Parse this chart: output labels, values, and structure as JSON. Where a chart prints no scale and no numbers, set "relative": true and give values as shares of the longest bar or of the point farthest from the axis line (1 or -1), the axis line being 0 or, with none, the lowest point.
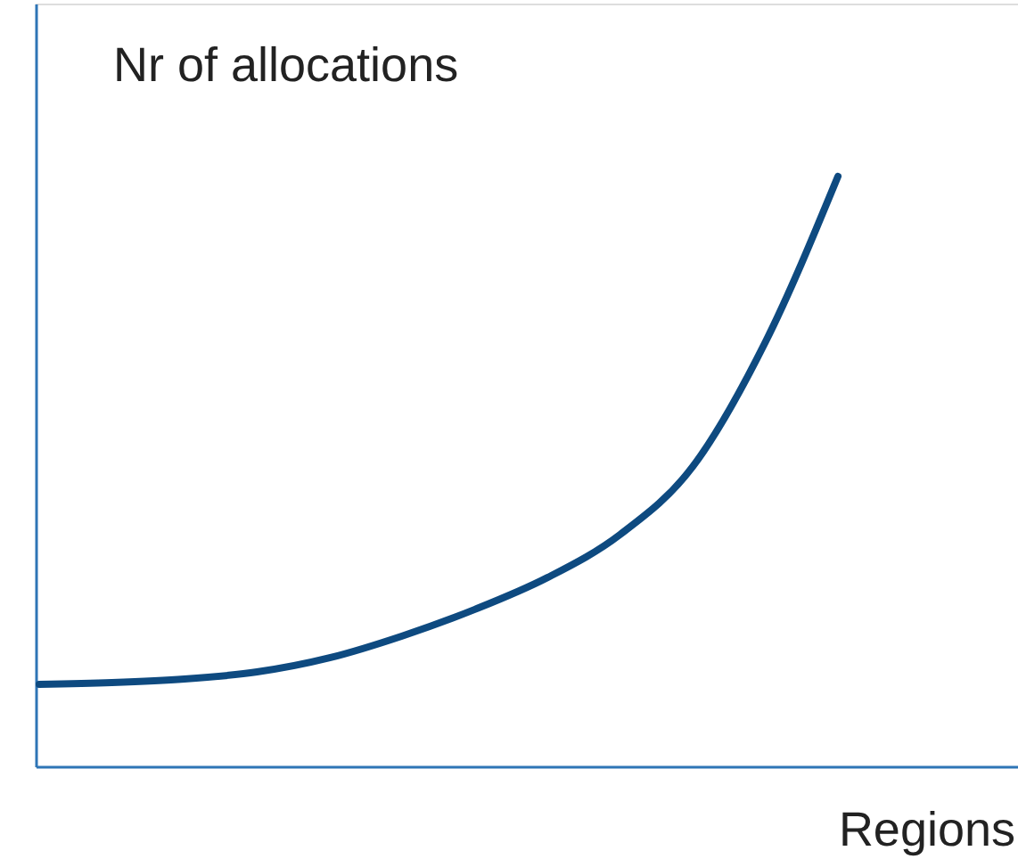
{
  "chart_data": {
    "type": "line",
    "relative": true,
    "xlabel": "Regions",
    "ylabel": "Nr of allocations",
    "tick_labels": false,
    "grid": false,
    "categories": [
      null,
      null,
      null,
      null,
      null,
      null,
      null,
      null,
      null,
      null,
      null,
      null
    ],
    "series": [
      {
        "color": "#0e4a80",
        "values": [
          0.139,
          0.142,
          0.148,
          0.16,
          0.184,
          0.221,
          0.266,
          0.32,
          0.393,
          0.508,
          0.719,
          1.0
        ]
      }
    ]
  }
}
